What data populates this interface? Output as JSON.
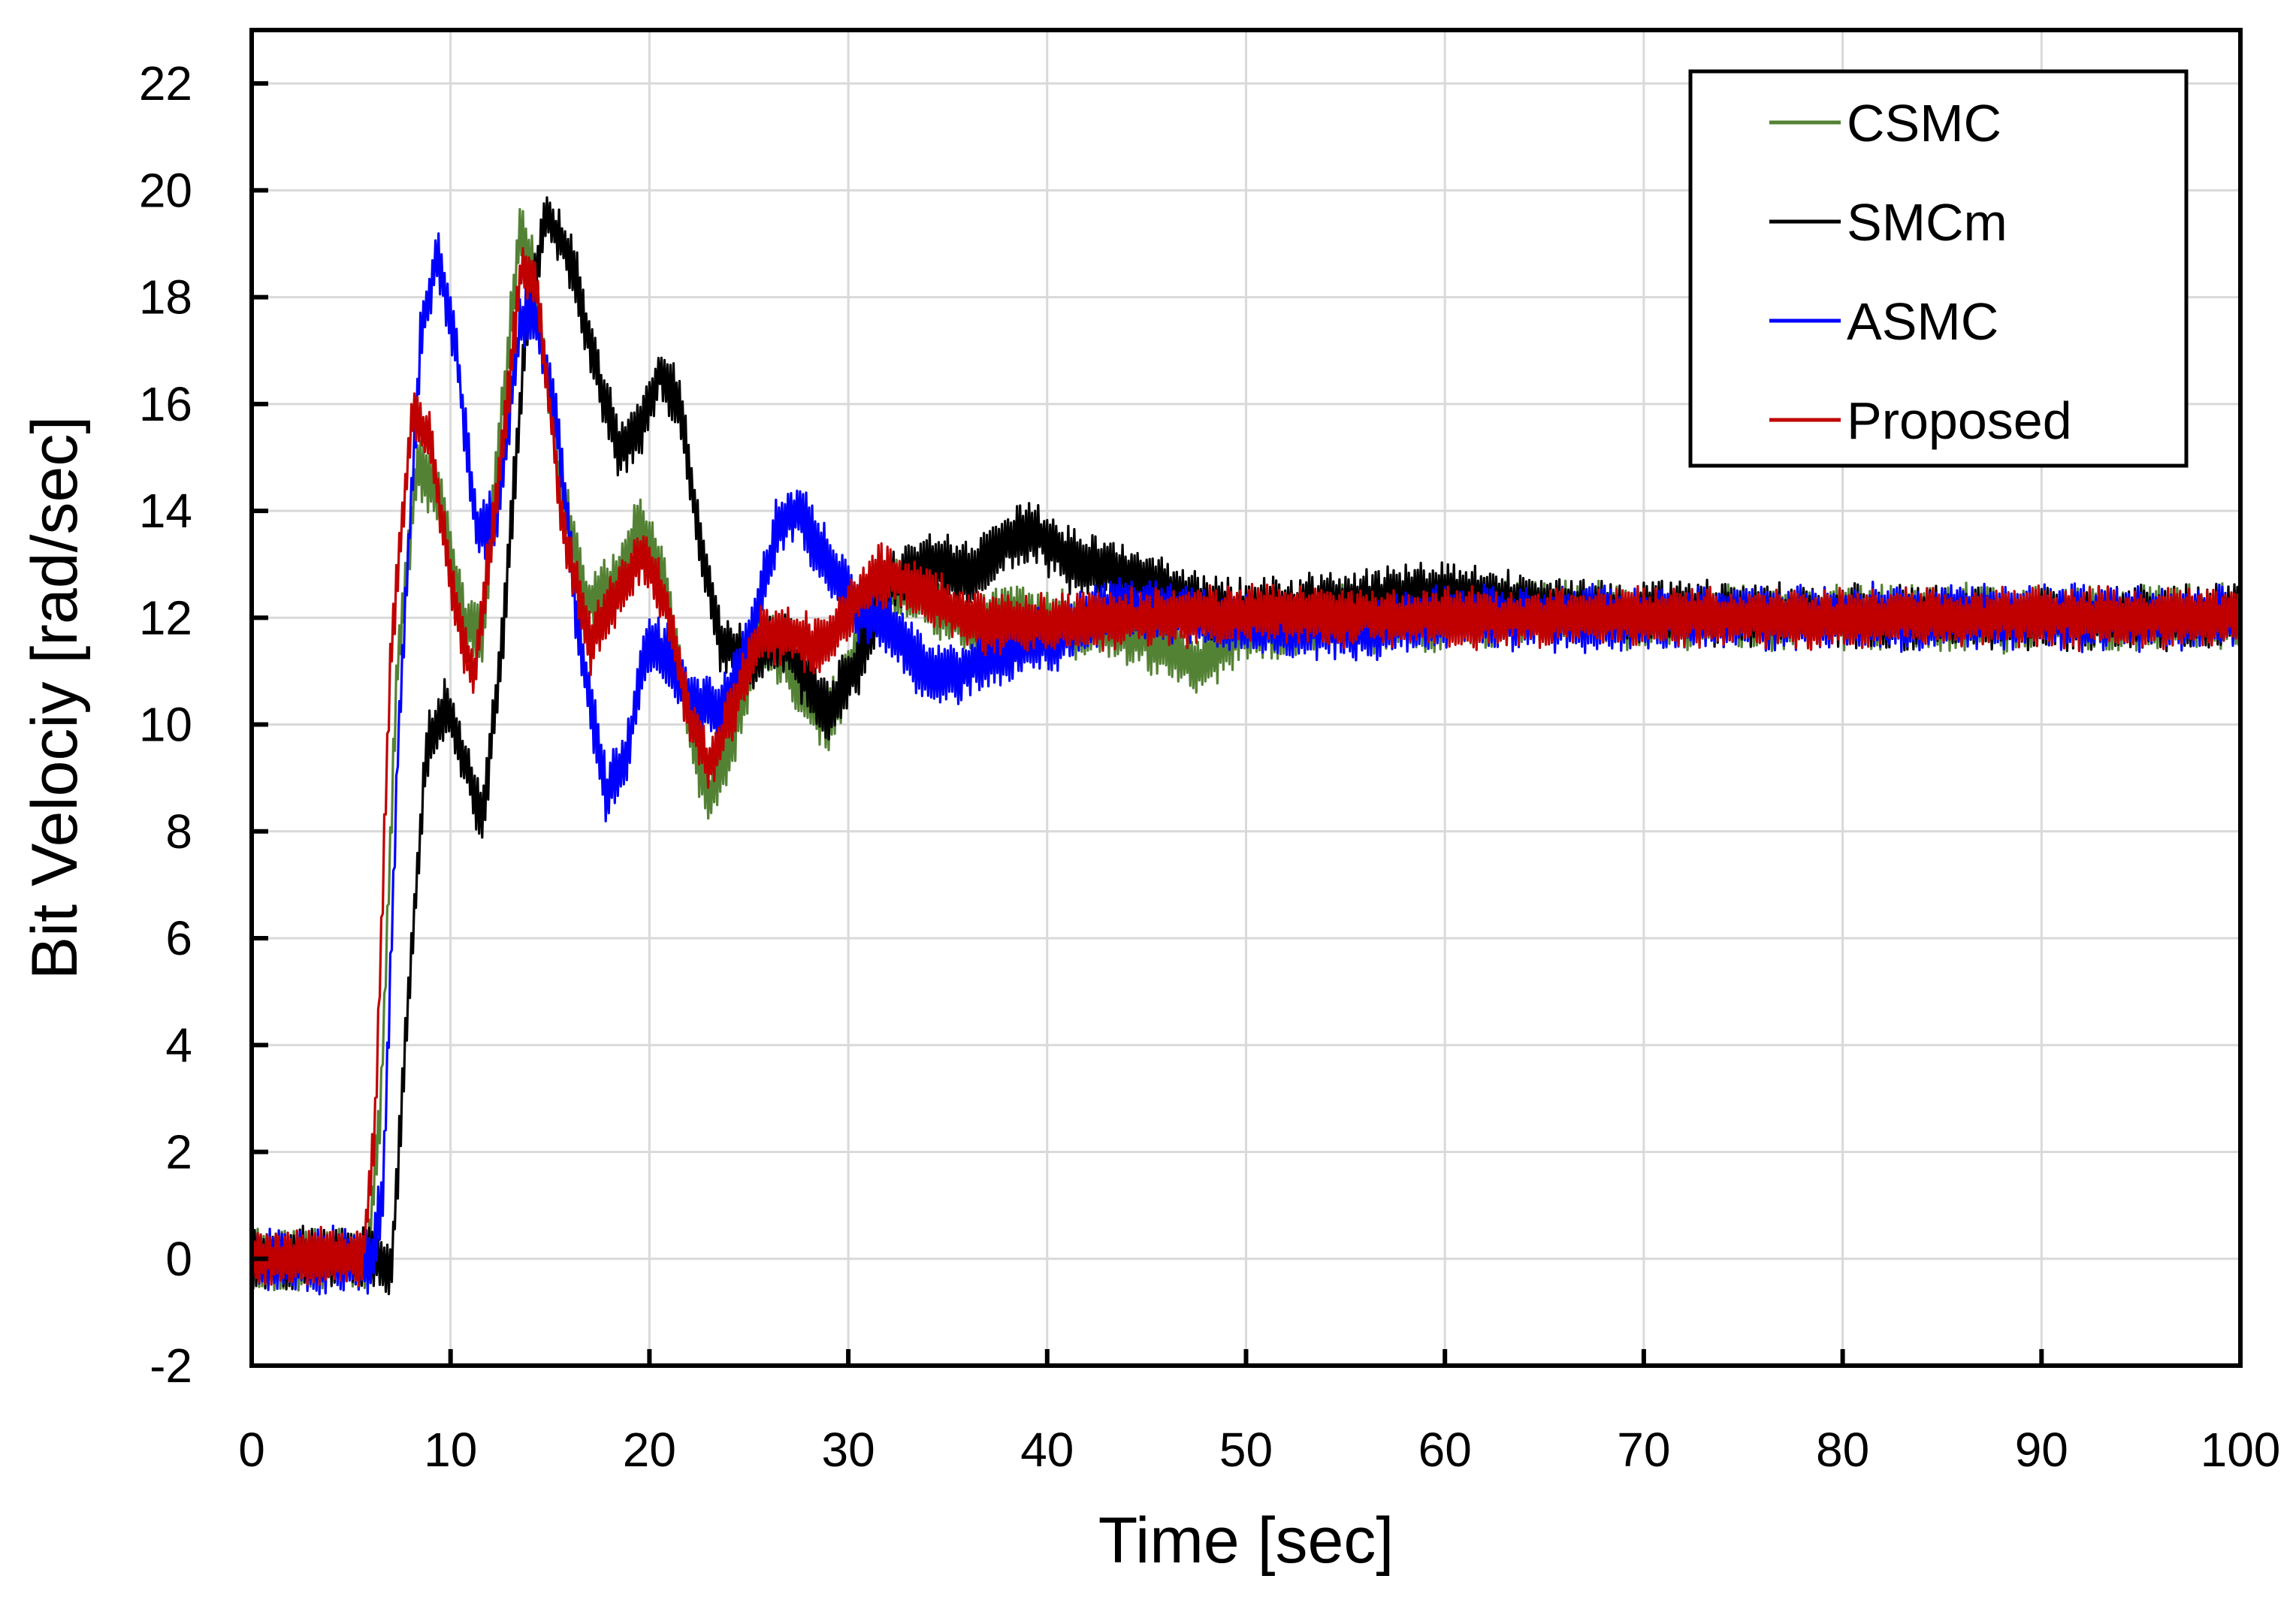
{
  "chart_data": {
    "type": "line",
    "title": "",
    "xlabel": "Time [sec]",
    "ylabel": "Bit Velociy [rad/sec]",
    "xlim": [
      0,
      100
    ],
    "ylim": [
      -2,
      23
    ],
    "xticks": [
      0,
      10,
      20,
      30,
      40,
      50,
      60,
      70,
      80,
      90,
      100
    ],
    "yticks": [
      -2,
      0,
      2,
      4,
      6,
      8,
      10,
      12,
      14,
      16,
      18,
      20,
      22
    ],
    "grid": true,
    "legend_position": "top-right",
    "series": [
      {
        "name": "CSMC",
        "color": "#548235",
        "noise": 0.55,
        "points": [
          [
            0,
            0
          ],
          [
            5.8,
            0
          ],
          [
            6.5,
            3
          ],
          [
            7.3,
            11
          ],
          [
            8.3,
            14.8
          ],
          [
            9.5,
            14.2
          ],
          [
            10.8,
            11.8
          ],
          [
            11.6,
            11.6
          ],
          [
            12.5,
            15.5
          ],
          [
            13.5,
            19.3
          ],
          [
            14.2,
            18.5
          ],
          [
            15.5,
            14.5
          ],
          [
            16.8,
            12.3
          ],
          [
            18.2,
            12.6
          ],
          [
            19.5,
            13.8
          ],
          [
            20.8,
            12.6
          ],
          [
            22,
            10
          ],
          [
            23,
            8.6
          ],
          [
            24.2,
            9.8
          ],
          [
            25.5,
            11.6
          ],
          [
            26.5,
            11.4
          ],
          [
            27.8,
            10.5
          ],
          [
            29,
            10.1
          ],
          [
            30.5,
            11.4
          ],
          [
            32,
            12.6
          ],
          [
            34,
            12.4
          ],
          [
            36,
            11.8
          ],
          [
            38,
            12.1
          ],
          [
            40,
            11.9
          ],
          [
            43,
            11.8
          ],
          [
            46,
            11.5
          ],
          [
            47.5,
            11.1
          ],
          [
            50,
            11.8
          ],
          [
            55,
            12
          ],
          [
            60,
            12
          ],
          [
            65,
            12.1
          ],
          [
            70,
            12
          ],
          [
            80,
            12
          ],
          [
            90,
            12
          ],
          [
            100,
            12
          ]
        ]
      },
      {
        "name": "SMCm",
        "color": "#000000",
        "noise": 0.55,
        "points": [
          [
            0,
            0
          ],
          [
            6.3,
            0
          ],
          [
            7,
            -0.3
          ],
          [
            7.8,
            4.5
          ],
          [
            8.8,
            9.6
          ],
          [
            9.8,
            10.3
          ],
          [
            10.8,
            9.2
          ],
          [
            11.6,
            8.2
          ],
          [
            12.6,
            11.5
          ],
          [
            13.8,
            17.5
          ],
          [
            14.8,
            19.5
          ],
          [
            16,
            18.8
          ],
          [
            17.2,
            16.8
          ],
          [
            18.5,
            15.1
          ],
          [
            19.5,
            15.5
          ],
          [
            20.5,
            16.6
          ],
          [
            21.5,
            16
          ],
          [
            22.5,
            13.5
          ],
          [
            23.5,
            11.6
          ],
          [
            25,
            11.1
          ],
          [
            26.5,
            11.7
          ],
          [
            27.5,
            11.1
          ],
          [
            29,
            10.2
          ],
          [
            30.5,
            11.2
          ],
          [
            32,
            12.6
          ],
          [
            34,
            13
          ],
          [
            36,
            12.8
          ],
          [
            38,
            13.4
          ],
          [
            39.5,
            13.6
          ],
          [
            41,
            13.1
          ],
          [
            43,
            12.9
          ],
          [
            45,
            12.7
          ],
          [
            48,
            12.2
          ],
          [
            50,
            12.1
          ],
          [
            55,
            12.3
          ],
          [
            60,
            12.5
          ],
          [
            65,
            12.2
          ],
          [
            70,
            12.1
          ],
          [
            80,
            12
          ],
          [
            90,
            12
          ],
          [
            100,
            12
          ]
        ]
      },
      {
        "name": "ASMC",
        "color": "#0000ff",
        "noise": 0.55,
        "points": [
          [
            0,
            0
          ],
          [
            6,
            0
          ],
          [
            6.6,
            1.2
          ],
          [
            7.4,
            10
          ],
          [
            8.5,
            17.3
          ],
          [
            9.3,
            18.8
          ],
          [
            10.3,
            17
          ],
          [
            11.3,
            13.6
          ],
          [
            12.3,
            13.8
          ],
          [
            13.5,
            17.5
          ],
          [
            14.2,
            17.8
          ],
          [
            15.3,
            15.8
          ],
          [
            16.5,
            11.5
          ],
          [
            17.8,
            8.7
          ],
          [
            18.8,
            9.3
          ],
          [
            19.8,
            11.5
          ],
          [
            20.8,
            11.3
          ],
          [
            22,
            10.5
          ],
          [
            23.5,
            10.2
          ],
          [
            25,
            11.5
          ],
          [
            26.5,
            13.8
          ],
          [
            27.5,
            14
          ],
          [
            29,
            13
          ],
          [
            30.5,
            12.2
          ],
          [
            32,
            11.8
          ],
          [
            34,
            11
          ],
          [
            35.5,
            10.9
          ],
          [
            37,
            11.3
          ],
          [
            39,
            11.5
          ],
          [
            41,
            11.7
          ],
          [
            43,
            12.1
          ],
          [
            45,
            12.2
          ],
          [
            50,
            11.9
          ],
          [
            55,
            11.8
          ],
          [
            60,
            12
          ],
          [
            70,
            12
          ],
          [
            80,
            12
          ],
          [
            90,
            12
          ],
          [
            100,
            12
          ]
        ]
      },
      {
        "name": "Proposed",
        "color": "#c00000",
        "noise": 0.5,
        "points": [
          [
            0,
            0
          ],
          [
            5.6,
            0
          ],
          [
            6.2,
            2.5
          ],
          [
            7,
            11.5
          ],
          [
            8.1,
            15.9
          ],
          [
            9,
            15.3
          ],
          [
            10.2,
            12.2
          ],
          [
            11.2,
            10.9
          ],
          [
            12.4,
            14.5
          ],
          [
            13.6,
            18.7
          ],
          [
            14.4,
            18
          ],
          [
            15.6,
            13.8
          ],
          [
            17,
            11.5
          ],
          [
            18.5,
            12.5
          ],
          [
            19.6,
            13.2
          ],
          [
            20.8,
            12.3
          ],
          [
            22,
            10.2
          ],
          [
            23,
            9.2
          ],
          [
            24.3,
            10.4
          ],
          [
            25.6,
            11.7
          ],
          [
            27,
            11.7
          ],
          [
            28.5,
            11.4
          ],
          [
            30,
            12.1
          ],
          [
            31.5,
            12.8
          ],
          [
            33,
            12.6
          ],
          [
            35,
            12.2
          ],
          [
            37,
            11.9
          ],
          [
            40,
            11.9
          ],
          [
            45,
            12
          ],
          [
            50,
            12.1
          ],
          [
            55,
            12
          ],
          [
            60,
            12
          ],
          [
            70,
            12
          ],
          [
            80,
            12
          ],
          [
            90,
            12
          ],
          [
            100,
            12
          ]
        ]
      }
    ]
  }
}
